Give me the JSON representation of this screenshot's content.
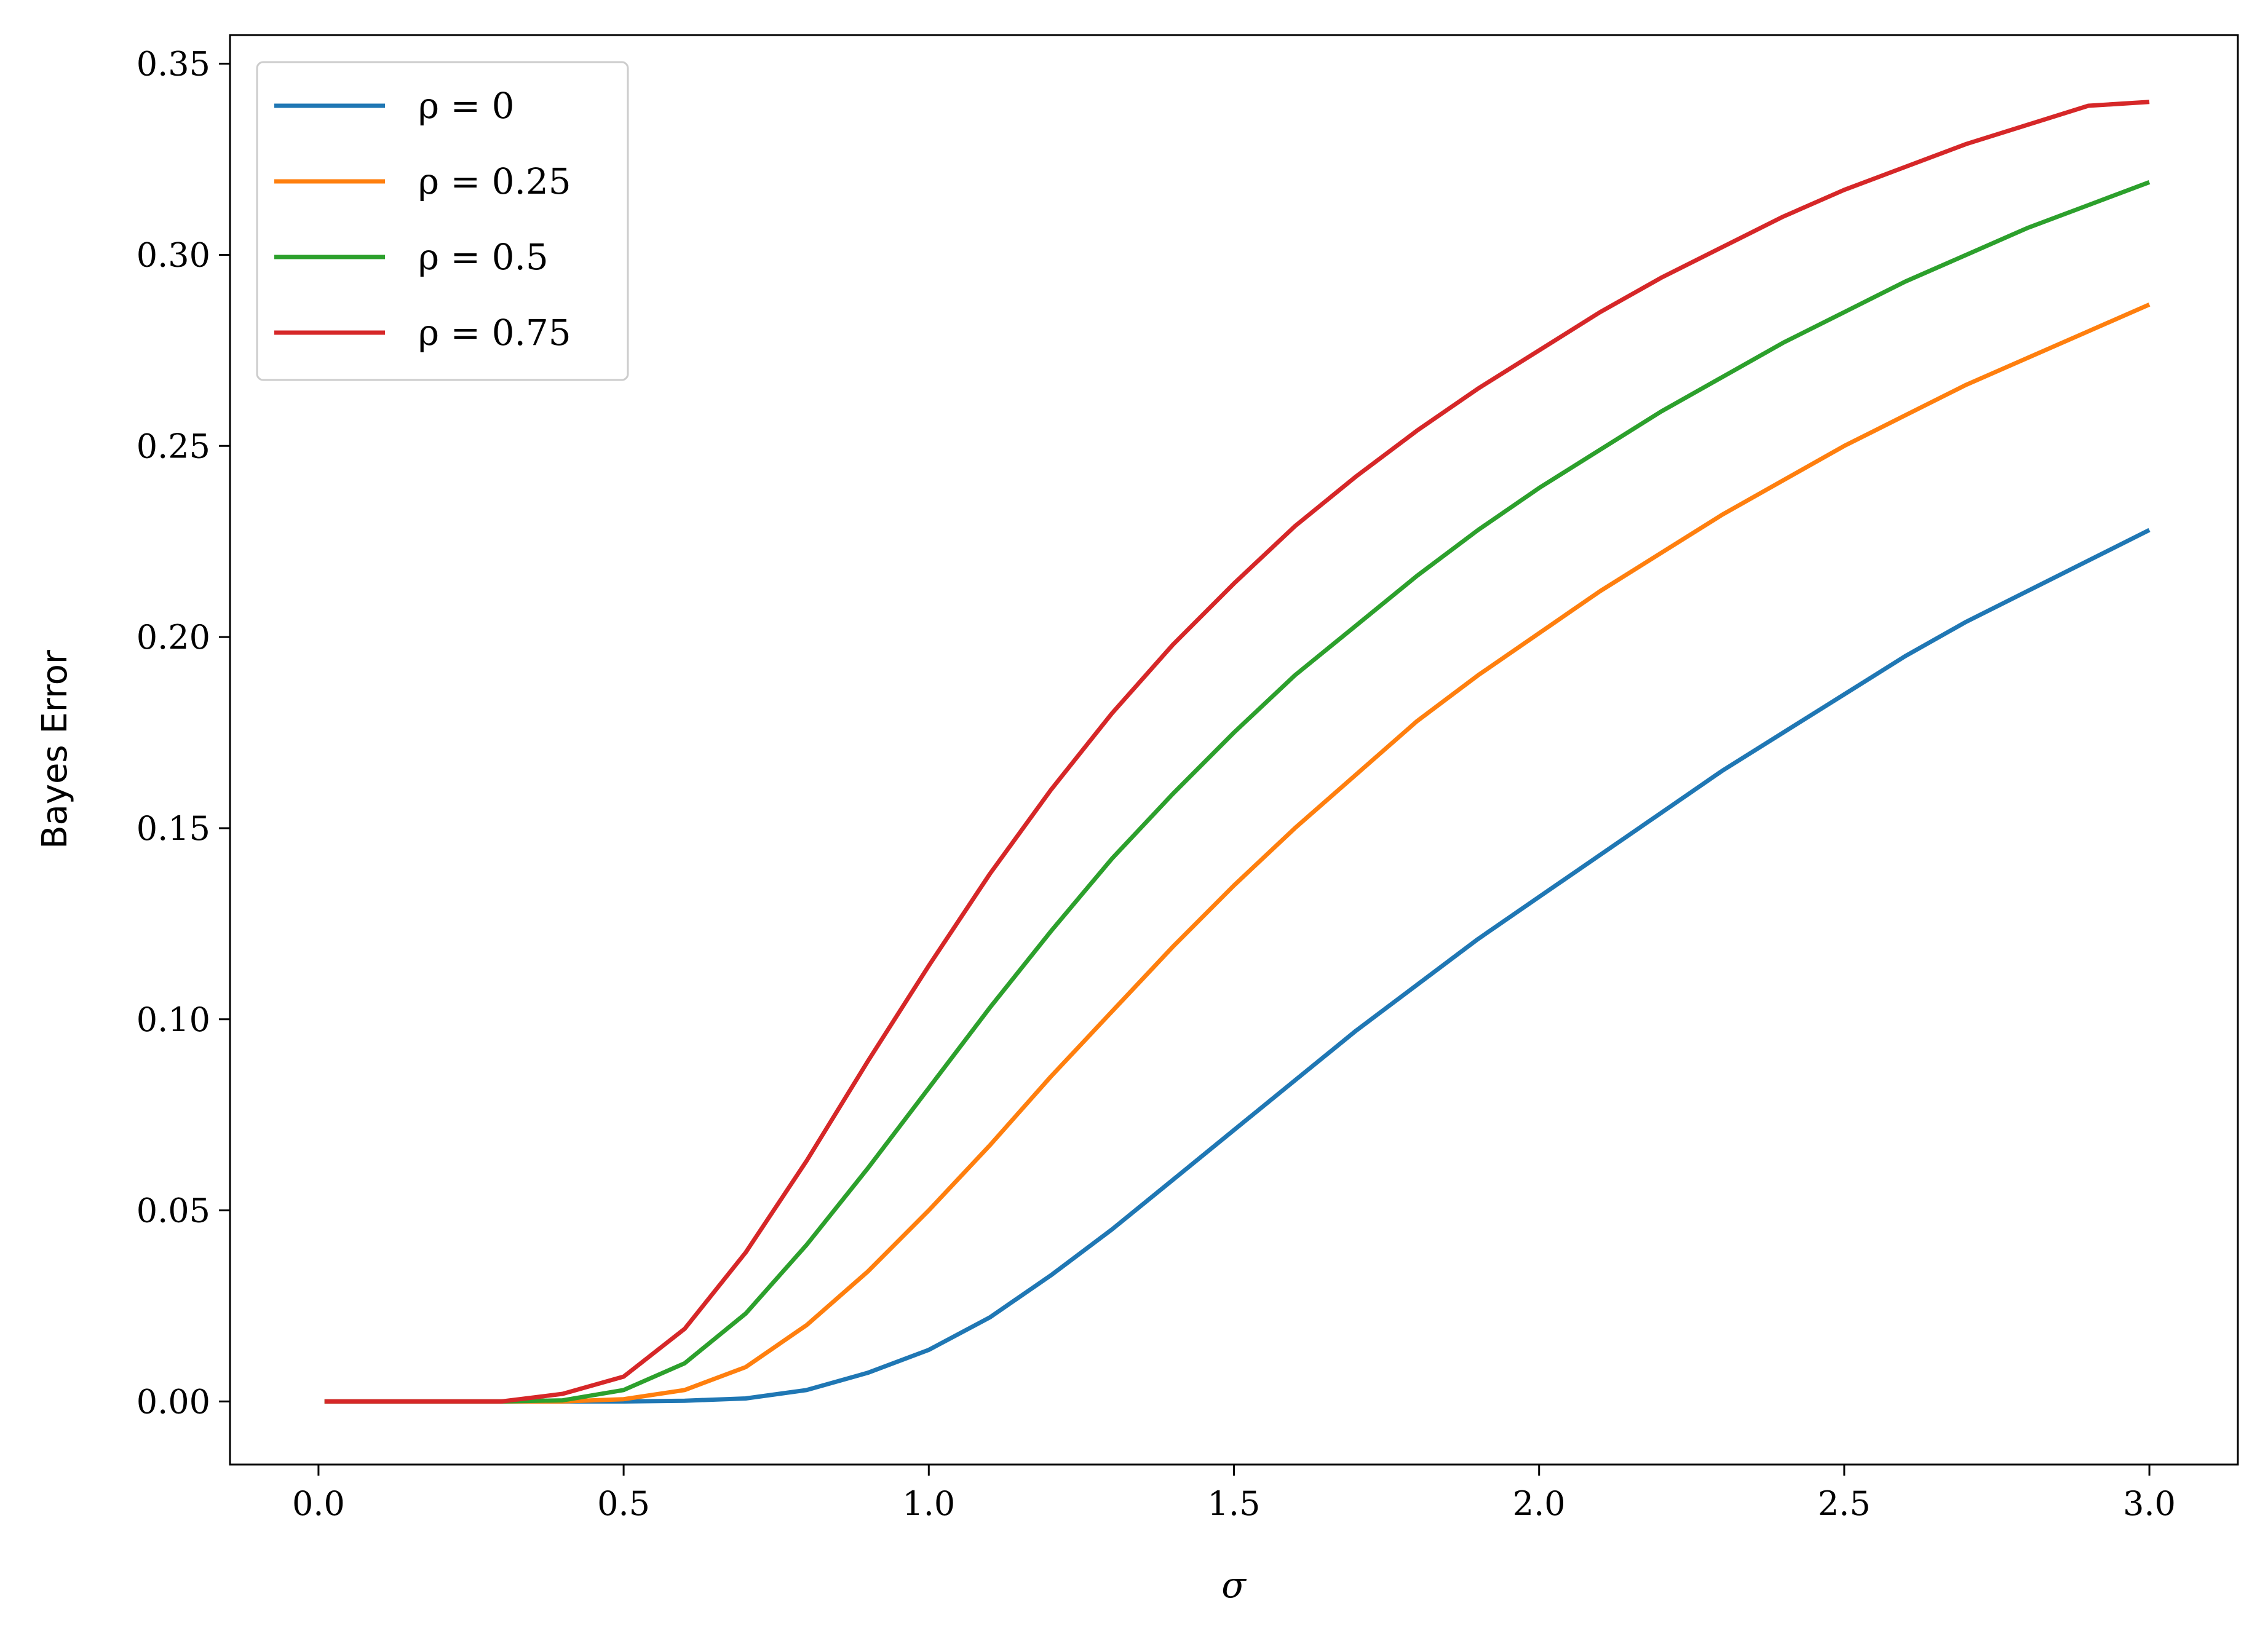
{
  "chart_data": {
    "type": "line",
    "xlabel": "σ",
    "ylabel": "Bayes Error",
    "xlim": [
      -0.145,
      3.145
    ],
    "ylim": [
      -0.0165,
      0.3575
    ],
    "xticks": [
      0.0,
      0.5,
      1.0,
      1.5,
      2.0,
      2.5,
      3.0
    ],
    "xtick_labels": [
      "0.0",
      "0.5",
      "1.0",
      "1.5",
      "2.0",
      "2.5",
      "3.0"
    ],
    "yticks": [
      0.0,
      0.05,
      0.1,
      0.15,
      0.2,
      0.25,
      0.3,
      0.35
    ],
    "ytick_labels": [
      "0.00",
      "0.05",
      "0.10",
      "0.15",
      "0.20",
      "0.25",
      "0.30",
      "0.35"
    ],
    "grid": false,
    "legend_position": "top-left",
    "x": [
      0.01,
      0.1,
      0.2,
      0.3,
      0.4,
      0.5,
      0.6,
      0.7,
      0.8,
      0.9,
      1.0,
      1.1,
      1.2,
      1.3,
      1.4,
      1.5,
      1.6,
      1.7,
      1.8,
      1.9,
      2.0,
      2.1,
      2.2,
      2.3,
      2.4,
      2.5,
      2.6,
      2.7,
      2.8,
      2.9,
      3.0
    ],
    "series": [
      {
        "name": "ρ = 0",
        "color": "#1f77b4",
        "values": [
          0.0,
          0.0,
          0.0,
          0.0,
          0.0,
          0.0,
          0.0002,
          0.0008,
          0.003,
          0.0075,
          0.0135,
          0.022,
          0.033,
          0.045,
          0.058,
          0.071,
          0.084,
          0.097,
          0.109,
          0.121,
          0.132,
          0.143,
          0.154,
          0.165,
          0.175,
          0.185,
          0.195,
          0.204,
          0.212,
          0.22,
          0.228
        ]
      },
      {
        "name": "ρ = 0.25",
        "color": "#ff7f0e",
        "values": [
          0.0,
          0.0,
          0.0,
          0.0,
          0.0,
          0.0006,
          0.003,
          0.009,
          0.02,
          0.034,
          0.05,
          0.067,
          0.085,
          0.102,
          0.119,
          0.135,
          0.15,
          0.164,
          0.178,
          0.19,
          0.201,
          0.212,
          0.222,
          0.232,
          0.241,
          0.25,
          0.258,
          0.266,
          0.273,
          0.28,
          0.287
        ]
      },
      {
        "name": "ρ = 0.5",
        "color": "#2ca02c",
        "values": [
          0.0,
          0.0,
          0.0,
          0.0,
          0.0003,
          0.003,
          0.01,
          0.023,
          0.041,
          0.061,
          0.082,
          0.103,
          0.123,
          0.142,
          0.159,
          0.175,
          0.19,
          0.203,
          0.216,
          0.228,
          0.239,
          0.249,
          0.259,
          0.268,
          0.277,
          0.285,
          0.293,
          0.3,
          0.307,
          0.313,
          0.319
        ]
      },
      {
        "name": "ρ = 0.75",
        "color": "#d62728",
        "values": [
          0.0,
          0.0,
          0.0,
          0.0,
          0.002,
          0.0065,
          0.019,
          0.039,
          0.063,
          0.089,
          0.114,
          0.138,
          0.16,
          0.18,
          0.198,
          0.214,
          0.229,
          0.242,
          0.254,
          0.265,
          0.275,
          0.285,
          0.294,
          0.302,
          0.31,
          0.317,
          0.323,
          0.329,
          0.334,
          0.339,
          0.34
        ]
      }
    ]
  }
}
